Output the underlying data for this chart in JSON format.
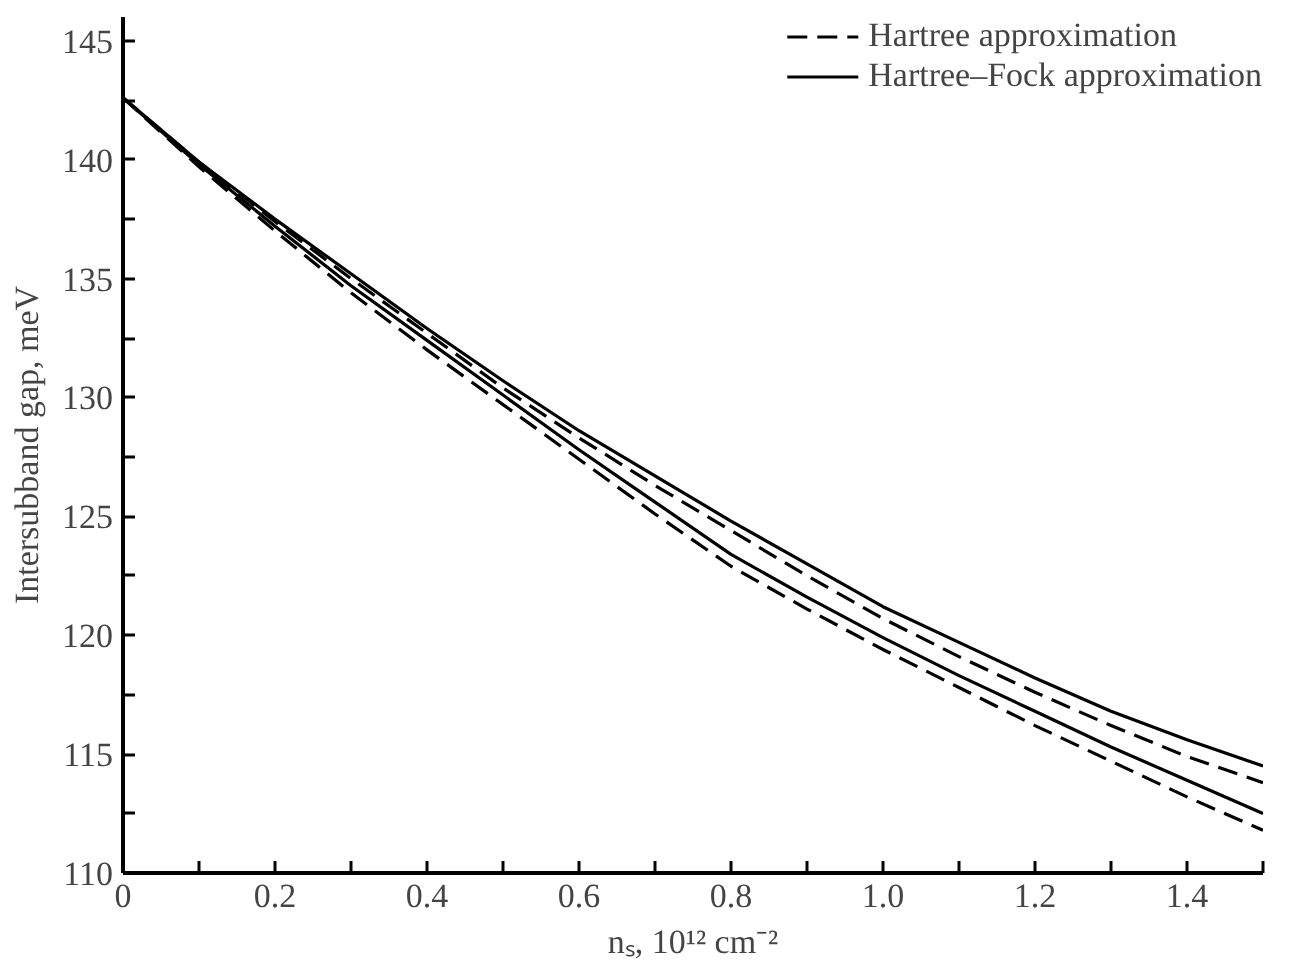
{
  "chart_data": {
    "type": "line",
    "xlabel": "nₛ, 10¹² cm⁻²",
    "ylabel": "Intersubband gap, meV",
    "x": [
      0,
      0.1,
      0.2,
      0.3,
      0.4,
      0.5,
      0.6,
      0.7,
      0.8,
      0.9,
      1.0,
      1.1,
      1.2,
      1.3,
      1.4,
      1.5
    ],
    "series": [
      {
        "name": "Hartree–Fock approximation",
        "color": "#000000",
        "line_style": "solid",
        "values": [
          142.6,
          139.9,
          137.5,
          135.2,
          132.9,
          130.7,
          128.6,
          126.7,
          124.8,
          123.0,
          121.2,
          119.7,
          118.2,
          116.8,
          115.6,
          114.5
        ]
      },
      {
        "name": "Hartree approximation",
        "color": "#000000",
        "line_style": "dashed",
        "values": [
          142.6,
          139.9,
          137.4,
          135.0,
          132.7,
          130.4,
          128.3,
          126.3,
          124.4,
          122.5,
          120.7,
          119.1,
          117.6,
          116.2,
          114.9,
          113.8
        ]
      },
      {
        "color": "#000000",
        "line_style": "solid",
        "values": [
          142.6,
          139.8,
          137.2,
          134.7,
          132.4,
          130.1,
          127.8,
          125.6,
          123.4,
          121.6,
          119.9,
          118.3,
          116.8,
          115.3,
          113.9,
          112.5
        ]
      },
      {
        "color": "#000000",
        "line_style": "dashed",
        "values": [
          142.6,
          139.7,
          137.0,
          134.4,
          132.0,
          129.7,
          127.4,
          125.1,
          122.9,
          121.1,
          119.4,
          117.8,
          116.2,
          114.7,
          113.2,
          111.8
        ]
      }
    ],
    "xlim": [
      0,
      1.5
    ],
    "xticks": [
      0,
      {
        "value": 0.1,
        "label": null
      },
      0.2,
      {
        "value": 0.3,
        "label": null
      },
      0.4,
      {
        "value": 0.5,
        "label": null
      },
      0.6,
      {
        "value": 0.7,
        "label": null
      },
      0.8,
      {
        "value": 0.9,
        "label": null
      },
      {
        "value": 1.0,
        "label": "1.0"
      },
      {
        "value": 1.1,
        "label": null
      },
      1.2,
      {
        "value": 1.3,
        "label": null
      },
      1.4,
      {
        "value": 1.5,
        "label": null
      }
    ],
    "ylim": [
      110,
      146
    ],
    "yticks": [
      110,
      {
        "value": 112.5,
        "label": null
      },
      115,
      {
        "value": 117.5,
        "label": null
      },
      120,
      {
        "value": 122.5,
        "label": null
      },
      125,
      {
        "value": 127.5,
        "label": null
      },
      130,
      {
        "value": 132.5,
        "label": null
      },
      135,
      {
        "value": 137.5,
        "label": null
      },
      140,
      {
        "value": 142.5,
        "label": null
      },
      145
    ],
    "legend": "top right",
    "grid": false,
    "marker": "none"
  }
}
